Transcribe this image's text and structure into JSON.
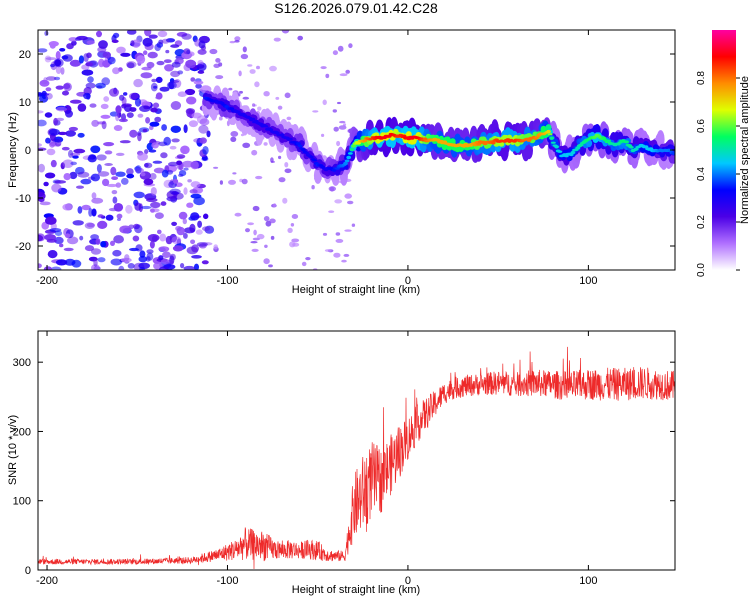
{
  "title": "S126.2026.079.01.42.C28",
  "chart_data": [
    {
      "type": "heatmap",
      "name": "spectrogram",
      "xlabel": "Height of straight line (km)",
      "ylabel": "Frequency (Hz)",
      "xlim": [
        -205,
        148
      ],
      "ylim": [
        -25,
        25
      ],
      "xticks": [
        -200,
        -100,
        0,
        100
      ],
      "yticks": [
        -20,
        -10,
        0,
        10,
        20
      ],
      "colorbar": {
        "label": "Normalized spectral amplitude",
        "range": [
          0,
          1
        ],
        "ticks": [
          "0.0",
          "0.2",
          "0.4",
          "0.6",
          "0.8"
        ],
        "colors": [
          "#ffffff",
          "#b070ff",
          "#4b00e6",
          "#0000ff",
          "#00c8ff",
          "#00ff60",
          "#dfff00",
          "#ff8c00",
          "#ff0000",
          "#ff00a0"
        ]
      },
      "ridge": {
        "x": [
          -112,
          -105,
          -100,
          -95,
          -90,
          -85,
          -80,
          -75,
          -70,
          -65,
          -60,
          -55,
          -50,
          -45,
          -40,
          -35,
          -32,
          -30,
          -25,
          -20,
          -15,
          -10,
          -5,
          0,
          5,
          10,
          15,
          20,
          25,
          30,
          35,
          40,
          45,
          50,
          55,
          60,
          65,
          70,
          75,
          78,
          80,
          85,
          90,
          95,
          100,
          105,
          110,
          115,
          120,
          125,
          130,
          135,
          140,
          145,
          148
        ],
        "y": [
          11,
          10,
          9,
          8,
          7,
          6,
          5,
          4,
          3,
          2,
          1,
          -1,
          -3,
          -4,
          -4,
          -3,
          -1,
          1,
          2,
          2.5,
          2.5,
          3,
          3,
          2.5,
          2.5,
          2,
          2,
          1.5,
          1,
          1,
          1,
          1.5,
          1.5,
          2,
          2,
          2,
          2,
          2.5,
          3.5,
          4,
          2,
          -1,
          -1,
          1,
          2,
          3,
          2,
          1,
          2,
          0,
          1,
          0,
          0,
          0,
          -1
        ],
        "peak_amplitude": [
          0.35,
          0.3,
          0.35,
          0.3,
          0.3,
          0.3,
          0.3,
          0.3,
          0.3,
          0.3,
          0.35,
          0.3,
          0.35,
          0.3,
          0.35,
          0.4,
          0.45,
          0.6,
          0.75,
          0.85,
          0.9,
          0.9,
          0.85,
          0.9,
          0.9,
          0.8,
          0.75,
          0.75,
          0.75,
          0.75,
          0.75,
          0.8,
          0.8,
          0.85,
          0.85,
          0.85,
          0.8,
          0.8,
          0.75,
          0.7,
          0.5,
          0.45,
          0.45,
          0.5,
          0.55,
          0.6,
          0.55,
          0.5,
          0.55,
          0.5,
          0.45,
          0.45,
          0.4,
          0.4,
          0.35
        ]
      },
      "noise_region": {
        "x": [
          -205,
          -110
        ],
        "y": [
          -25,
          25
        ],
        "amplitude": [
          0.1,
          0.35
        ]
      }
    },
    {
      "type": "line",
      "name": "snr",
      "color": "#ee2a2a",
      "xlabel": "Height of straight line (km)",
      "ylabel": "SNR (10 * v/v)",
      "xlim": [
        -205,
        148
      ],
      "ylim": [
        0,
        345
      ],
      "xticks": [
        -200,
        -100,
        0,
        100
      ],
      "yticks": [
        0,
        100,
        200,
        300
      ],
      "envelope": {
        "x": [
          -205,
          -180,
          -150,
          -120,
          -105,
          -95,
          -90,
          -85,
          -80,
          -75,
          -70,
          -65,
          -60,
          -55,
          -50,
          -45,
          -40,
          -35,
          -30,
          -25,
          -20,
          -15,
          -10,
          -5,
          0,
          5,
          10,
          15,
          20,
          25,
          30,
          40,
          50,
          60,
          70,
          80,
          90,
          100,
          110,
          120,
          130,
          140,
          148
        ],
        "mean": [
          12,
          12,
          12,
          14,
          22,
          30,
          38,
          36,
          35,
          30,
          28,
          30,
          28,
          30,
          28,
          22,
          20,
          20,
          90,
          110,
          130,
          130,
          150,
          170,
          190,
          210,
          225,
          240,
          255,
          262,
          265,
          268,
          270,
          268,
          270,
          268,
          265,
          268,
          268,
          268,
          270,
          268,
          265
        ],
        "spread": [
          5,
          5,
          5,
          6,
          12,
          20,
          30,
          28,
          28,
          20,
          15,
          18,
          15,
          18,
          18,
          12,
          10,
          10,
          60,
          70,
          70,
          60,
          55,
          50,
          40,
          35,
          30,
          25,
          20,
          20,
          20,
          20,
          22,
          22,
          25,
          25,
          28,
          28,
          30,
          30,
          30,
          28,
          28
        ]
      }
    }
  ]
}
